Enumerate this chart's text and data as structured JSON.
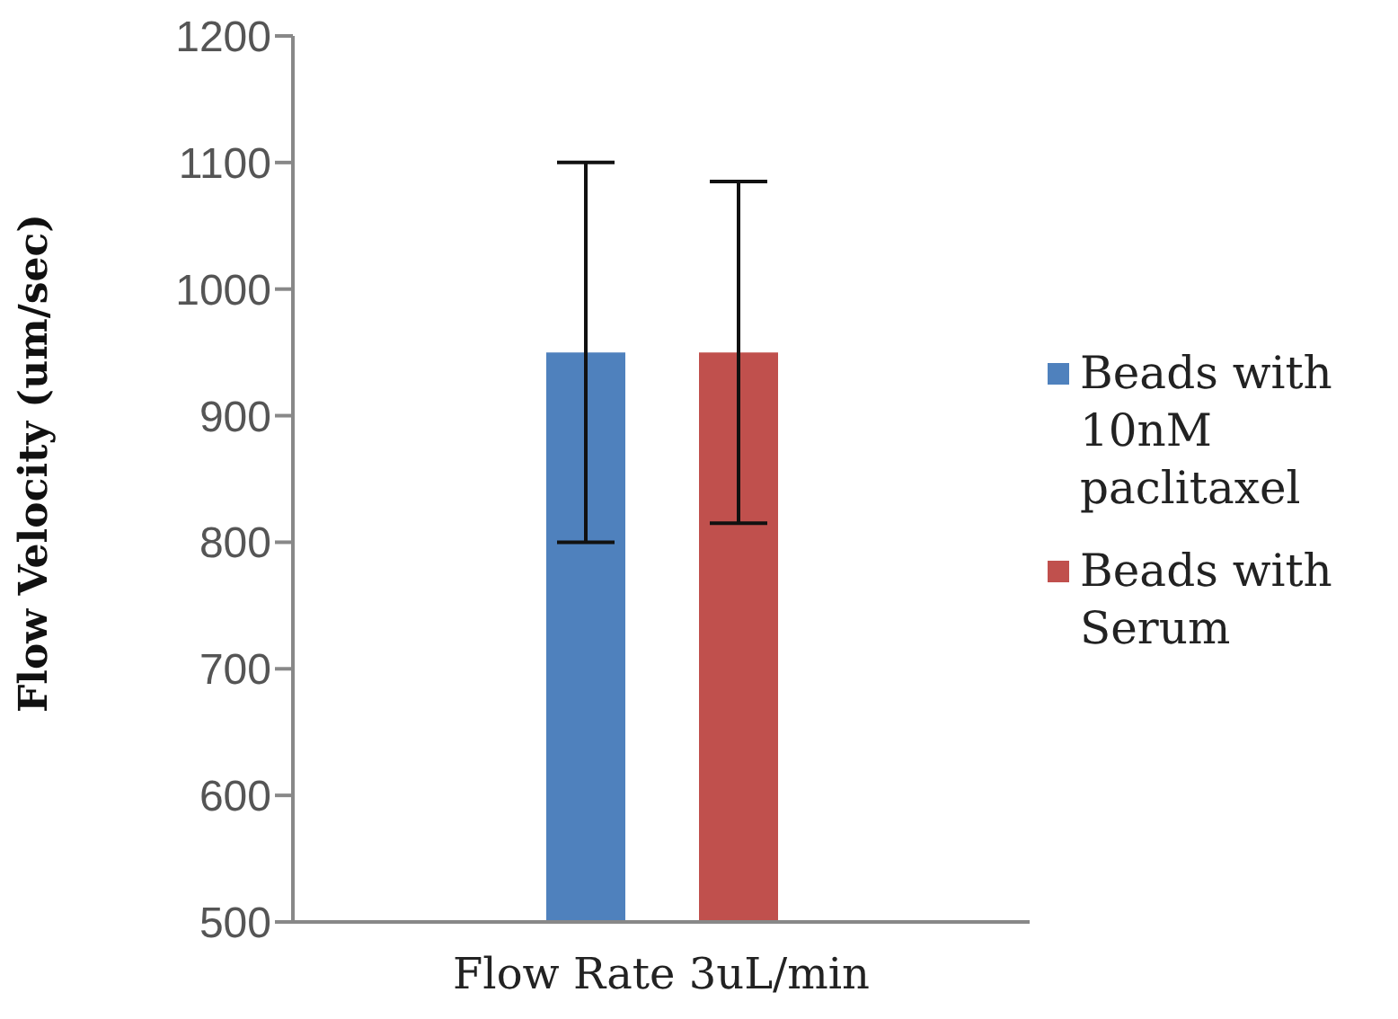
{
  "chart_data": {
    "type": "bar",
    "ylabel": "Flow Velocity (um/sec)",
    "categories": [
      "Flow Rate 3uL/min"
    ],
    "series": [
      {
        "name": "Beads with 10nM paclitaxel",
        "color": "#4f81bd",
        "values": [
          950
        ],
        "errors": [
          150
        ]
      },
      {
        "name": "Beads with Serum",
        "color": "#c0504d",
        "values": [
          950
        ],
        "errors": [
          135
        ]
      }
    ],
    "ylim": [
      500,
      1200
    ],
    "yticks": [
      500,
      600,
      700,
      800,
      900,
      1000,
      1100,
      1200
    ],
    "grid": false,
    "legend": "right"
  }
}
